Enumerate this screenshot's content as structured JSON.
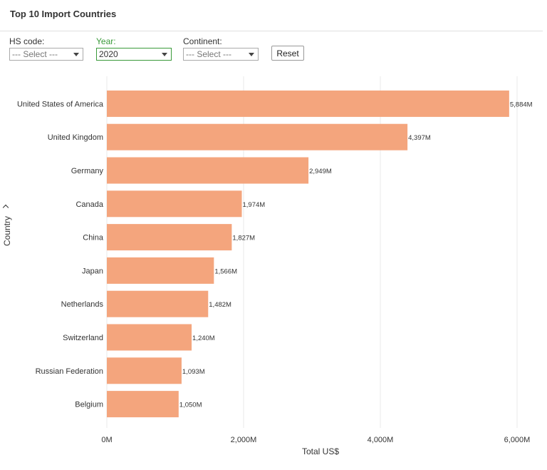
{
  "title": "Top 10 Import Countries",
  "filters": {
    "hs_code": {
      "label": "HS code:",
      "value": "--- Select ---"
    },
    "year": {
      "label": "Year:",
      "value": "2020"
    },
    "continent": {
      "label": "Continent:",
      "value": "--- Select ---"
    },
    "reset_label": "Reset"
  },
  "colors": {
    "bar": "#f4a57d",
    "grid": "#e8e8e8",
    "accent_green": "#3a9a3a"
  },
  "icons": {
    "dropdown": "chevron-down-icon",
    "axis_toggle": "chevron-right-icon"
  },
  "chart_data": {
    "type": "bar",
    "orientation": "horizontal",
    "categories": [
      "United States of America",
      "United Kingdom",
      "Germany",
      "Canada",
      "China",
      "Japan",
      "Netherlands",
      "Switzerland",
      "Russian Federation",
      "Belgium"
    ],
    "values": [
      5884,
      4397,
      2949,
      1974,
      1827,
      1566,
      1482,
      1240,
      1093,
      1050
    ],
    "data_labels": [
      "5,884M",
      "4,397M",
      "2,949M",
      "1,974M",
      "1,827M",
      "1,566M",
      "1,482M",
      "1,240M",
      "1,093M",
      "1,050M"
    ],
    "xlabel": "Total US$",
    "ylabel": "Country",
    "xlim": [
      0,
      6000
    ],
    "x_ticks": [
      0,
      2000,
      4000,
      6000
    ],
    "x_tick_labels": [
      "0M",
      "2,000M",
      "4,000M",
      "6,000M"
    ],
    "grid": true,
    "legend": "none"
  }
}
